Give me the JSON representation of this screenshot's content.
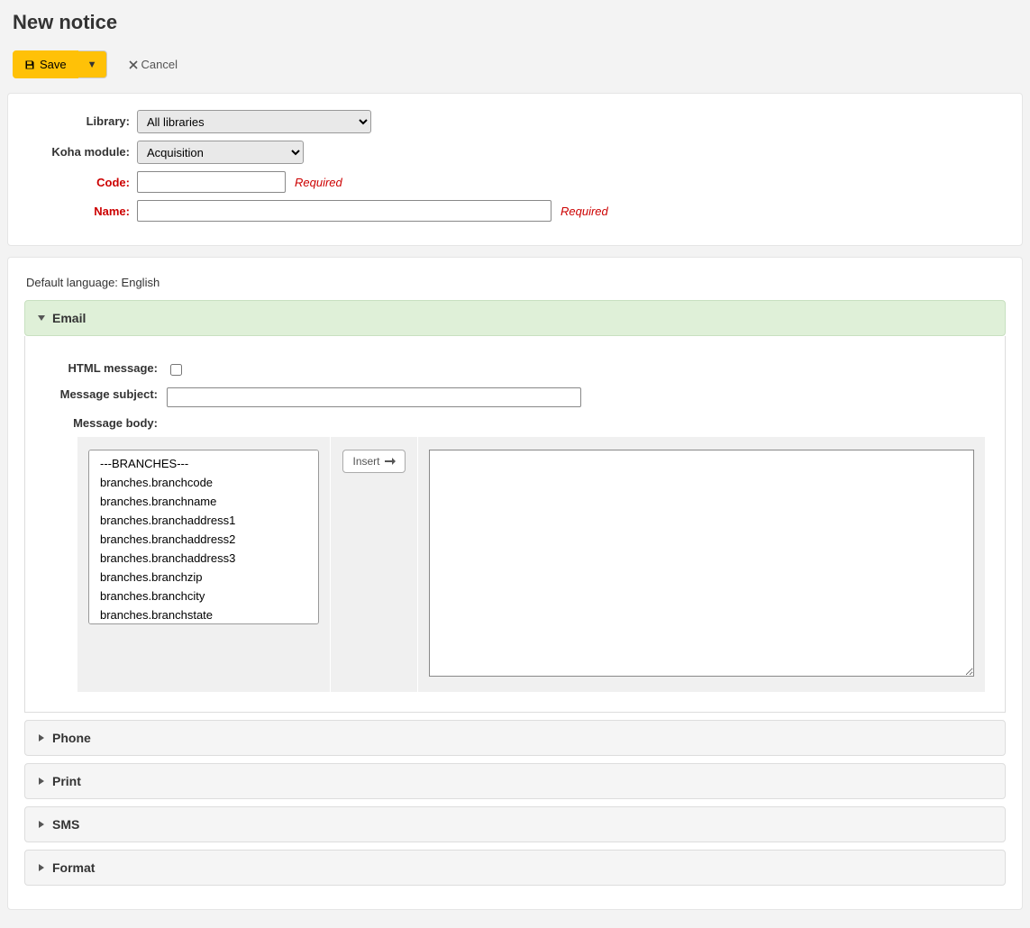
{
  "page": {
    "title": "New notice"
  },
  "toolbar": {
    "save_label": "Save",
    "cancel_label": "Cancel"
  },
  "form": {
    "labels": {
      "library": "Library:",
      "module": "Koha module:",
      "code": "Code:",
      "name": "Name:"
    },
    "library_options": [
      "All libraries"
    ],
    "library_selected": "All libraries",
    "module_options": [
      "Acquisition"
    ],
    "module_selected": "Acquisition",
    "code_value": "",
    "name_value": "",
    "required_text": "Required"
  },
  "lang": {
    "label": "Default language:",
    "value": "English"
  },
  "sections": {
    "email": {
      "title": "Email",
      "expanded": true,
      "labels": {
        "html_message": "HTML message:",
        "subject": "Message subject:",
        "body": "Message body:",
        "insert": "Insert"
      },
      "html_checked": false,
      "subject_value": "",
      "body_value": "",
      "placeholders": [
        "---BRANCHES---",
        "branches.branchcode",
        "branches.branchname",
        "branches.branchaddress1",
        "branches.branchaddress2",
        "branches.branchaddress3",
        "branches.branchzip",
        "branches.branchcity",
        "branches.branchstate"
      ]
    },
    "phone": {
      "title": "Phone",
      "expanded": false
    },
    "print": {
      "title": "Print",
      "expanded": false
    },
    "sms": {
      "title": "SMS",
      "expanded": false
    },
    "format": {
      "title": "Format",
      "expanded": false
    }
  },
  "colors": {
    "page_bg": "#f3f3f3",
    "panel_bg": "#ffffff",
    "save_btn": "#ffc107",
    "required": "#cc0000",
    "expanded_bg": "#dff0d8"
  }
}
